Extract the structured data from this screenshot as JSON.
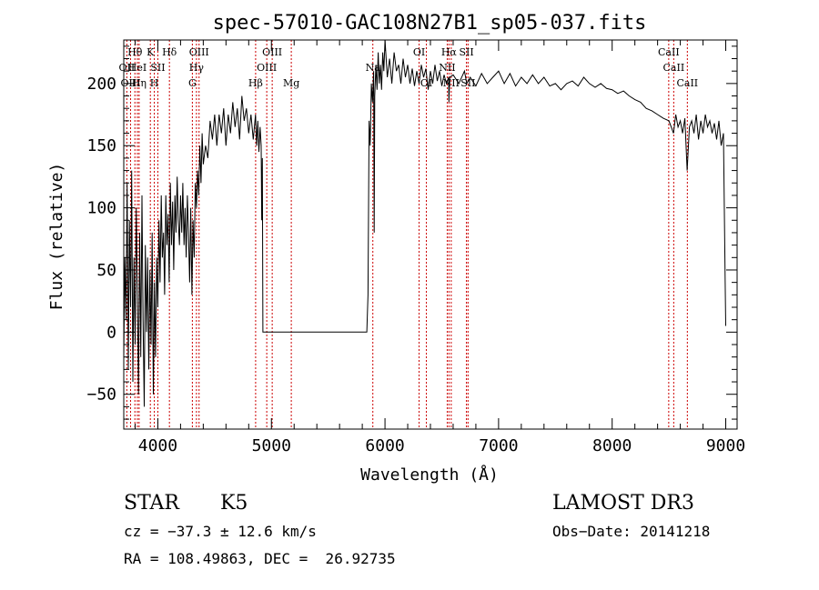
{
  "chart_data": {
    "type": "line",
    "title": "spec-57010-GAC108N27B1_sp05-037.fits",
    "xlabel": "Wavelength (Å)",
    "ylabel": "Flux (relative)",
    "xlim": [
      3700,
      9100
    ],
    "ylim": [
      -78,
      235
    ],
    "x_ticks": [
      4000,
      5000,
      6000,
      7000,
      8000,
      9000
    ],
    "x_tick_labels": [
      "4000",
      "5000",
      "6000",
      "7000",
      "8000",
      "9000"
    ],
    "y_ticks": [
      -50,
      0,
      50,
      100,
      150,
      200
    ],
    "y_tick_labels": [
      "−50",
      "0",
      "50",
      "100",
      "150",
      "200"
    ],
    "series": [
      {
        "name": "spectrum",
        "color": "#000000",
        "points": [
          [
            3700,
            -20
          ],
          [
            3710,
            60
          ],
          [
            3720,
            10
          ],
          [
            3730,
            120
          ],
          [
            3740,
            -30
          ],
          [
            3750,
            90
          ],
          [
            3760,
            20
          ],
          [
            3770,
            130
          ],
          [
            3780,
            -40
          ],
          [
            3790,
            60
          ],
          [
            3800,
            -10
          ],
          [
            3810,
            100
          ],
          [
            3820,
            30
          ],
          [
            3830,
            -50
          ],
          [
            3840,
            80
          ],
          [
            3850,
            -20
          ],
          [
            3860,
            110
          ],
          [
            3870,
            10
          ],
          [
            3880,
            -60
          ],
          [
            3890,
            70
          ],
          [
            3900,
            0
          ],
          [
            3910,
            60
          ],
          [
            3920,
            -30
          ],
          [
            3930,
            50
          ],
          [
            3940,
            -10
          ],
          [
            3950,
            80
          ],
          [
            3960,
            -50
          ],
          [
            3970,
            40
          ],
          [
            3980,
            -20
          ],
          [
            3990,
            60
          ],
          [
            4000,
            20
          ],
          [
            4010,
            90
          ],
          [
            4020,
            40
          ],
          [
            4030,
            110
          ],
          [
            4040,
            60
          ],
          [
            4050,
            80
          ],
          [
            4060,
            30
          ],
          [
            4070,
            110
          ],
          [
            4080,
            70
          ],
          [
            4090,
            95
          ],
          [
            4100,
            40
          ],
          [
            4110,
            120
          ],
          [
            4120,
            70
          ],
          [
            4130,
            105
          ],
          [
            4140,
            50
          ],
          [
            4150,
            110
          ],
          [
            4160,
            80
          ],
          [
            4170,
            125
          ],
          [
            4180,
            90
          ],
          [
            4190,
            70
          ],
          [
            4200,
            110
          ],
          [
            4210,
            80
          ],
          [
            4220,
            120
          ],
          [
            4230,
            70
          ],
          [
            4240,
            100
          ],
          [
            4250,
            60
          ],
          [
            4260,
            110
          ],
          [
            4270,
            80
          ],
          [
            4280,
            40
          ],
          [
            4290,
            100
          ],
          [
            4300,
            30
          ],
          [
            4310,
            90
          ],
          [
            4320,
            60
          ],
          [
            4330,
            120
          ],
          [
            4340,
            100
          ],
          [
            4350,
            130
          ],
          [
            4360,
            110
          ],
          [
            4370,
            150
          ],
          [
            4380,
            120
          ],
          [
            4390,
            160
          ],
          [
            4400,
            135
          ],
          [
            4420,
            150
          ],
          [
            4440,
            140
          ],
          [
            4460,
            170
          ],
          [
            4480,
            155
          ],
          [
            4500,
            175
          ],
          [
            4520,
            150
          ],
          [
            4540,
            175
          ],
          [
            4560,
            160
          ],
          [
            4580,
            180
          ],
          [
            4600,
            150
          ],
          [
            4620,
            175
          ],
          [
            4640,
            160
          ],
          [
            4660,
            185
          ],
          [
            4680,
            165
          ],
          [
            4700,
            180
          ],
          [
            4720,
            155
          ],
          [
            4740,
            190
          ],
          [
            4760,
            170
          ],
          [
            4780,
            180
          ],
          [
            4800,
            160
          ],
          [
            4820,
            175
          ],
          [
            4840,
            155
          ],
          [
            4860,
            175
          ],
          [
            4870,
            150
          ],
          [
            4880,
            170
          ],
          [
            4890,
            145
          ],
          [
            4900,
            165
          ],
          [
            4910,
            150
          ],
          [
            4915,
            90
          ],
          [
            4920,
            140
          ],
          [
            4925,
            0
          ],
          [
            4940,
            0
          ],
          [
            5000,
            0
          ],
          [
            5100,
            0
          ],
          [
            5200,
            0
          ],
          [
            5300,
            0
          ],
          [
            5400,
            0
          ],
          [
            5500,
            0
          ],
          [
            5600,
            0
          ],
          [
            5700,
            0
          ],
          [
            5800,
            0
          ],
          [
            5840,
            0
          ],
          [
            5850,
            30
          ],
          [
            5860,
            170
          ],
          [
            5870,
            150
          ],
          [
            5880,
            200
          ],
          [
            5890,
            185
          ],
          [
            5900,
            210
          ],
          [
            5905,
            80
          ],
          [
            5910,
            190
          ],
          [
            5920,
            215
          ],
          [
            5930,
            195
          ],
          [
            5940,
            225
          ],
          [
            5950,
            200
          ],
          [
            5960,
            215
          ],
          [
            5970,
            195
          ],
          [
            5980,
            225
          ],
          [
            5990,
            210
          ],
          [
            6000,
            235
          ],
          [
            6020,
            205
          ],
          [
            6040,
            220
          ],
          [
            6060,
            200
          ],
          [
            6080,
            225
          ],
          [
            6100,
            210
          ],
          [
            6120,
            215
          ],
          [
            6140,
            200
          ],
          [
            6160,
            220
          ],
          [
            6180,
            205
          ],
          [
            6200,
            215
          ],
          [
            6220,
            200
          ],
          [
            6240,
            212
          ],
          [
            6260,
            198
          ],
          [
            6280,
            210
          ],
          [
            6300,
            200
          ],
          [
            6320,
            215
          ],
          [
            6340,
            205
          ],
          [
            6360,
            212
          ],
          [
            6380,
            195
          ],
          [
            6400,
            210
          ],
          [
            6420,
            200
          ],
          [
            6440,
            215
          ],
          [
            6460,
            202
          ],
          [
            6480,
            210
          ],
          [
            6500,
            198
          ],
          [
            6520,
            207
          ],
          [
            6540,
            200
          ],
          [
            6560,
            205
          ],
          [
            6563,
            185
          ],
          [
            6570,
            205
          ],
          [
            6600,
            207
          ],
          [
            6650,
            200
          ],
          [
            6700,
            210
          ],
          [
            6720,
            200
          ],
          [
            6750,
            205
          ],
          [
            6800,
            198
          ],
          [
            6850,
            208
          ],
          [
            6900,
            200
          ],
          [
            6950,
            205
          ],
          [
            7000,
            210
          ],
          [
            7050,
            200
          ],
          [
            7100,
            208
          ],
          [
            7150,
            198
          ],
          [
            7200,
            205
          ],
          [
            7250,
            200
          ],
          [
            7300,
            207
          ],
          [
            7350,
            200
          ],
          [
            7400,
            205
          ],
          [
            7450,
            198
          ],
          [
            7500,
            200
          ],
          [
            7550,
            195
          ],
          [
            7600,
            200
          ],
          [
            7650,
            202
          ],
          [
            7700,
            198
          ],
          [
            7750,
            205
          ],
          [
            7800,
            200
          ],
          [
            7850,
            197
          ],
          [
            7900,
            200
          ],
          [
            7950,
            196
          ],
          [
            8000,
            195
          ],
          [
            8050,
            192
          ],
          [
            8100,
            194
          ],
          [
            8150,
            190
          ],
          [
            8200,
            187
          ],
          [
            8250,
            185
          ],
          [
            8300,
            180
          ],
          [
            8350,
            178
          ],
          [
            8400,
            175
          ],
          [
            8450,
            172
          ],
          [
            8500,
            170
          ],
          [
            8520,
            165
          ],
          [
            8540,
            160
          ],
          [
            8560,
            175
          ],
          [
            8580,
            165
          ],
          [
            8600,
            170
          ],
          [
            8620,
            160
          ],
          [
            8640,
            172
          ],
          [
            8660,
            130
          ],
          [
            8680,
            165
          ],
          [
            8700,
            170
          ],
          [
            8720,
            160
          ],
          [
            8740,
            175
          ],
          [
            8760,
            155
          ],
          [
            8780,
            170
          ],
          [
            8800,
            160
          ],
          [
            8820,
            175
          ],
          [
            8840,
            165
          ],
          [
            8860,
            170
          ],
          [
            8880,
            160
          ],
          [
            8900,
            168
          ],
          [
            8920,
            155
          ],
          [
            8940,
            170
          ],
          [
            8960,
            150
          ],
          [
            8980,
            160
          ],
          [
            8995,
            40
          ],
          [
            9000,
            5
          ]
        ]
      }
    ],
    "lines": [
      {
        "label": "Hθ",
        "x": 3798,
        "row": 1
      },
      {
        "label": "OII",
        "x": 3727,
        "row": 2
      },
      {
        "label": "OIII",
        "x": 3760,
        "row": 3
      },
      {
        "label": "HeI",
        "x": 3820,
        "row": 2
      },
      {
        "label": "Hη",
        "x": 3835,
        "row": 3
      },
      {
        "label": "K",
        "x": 3934,
        "row": 1
      },
      {
        "label": "SII",
        "x": 4000,
        "row": 2
      },
      {
        "label": "H",
        "x": 3969,
        "row": 3
      },
      {
        "label": "Hδ",
        "x": 4102,
        "row": 1
      },
      {
        "label": "OIII",
        "x": 4363,
        "row": 1
      },
      {
        "label": "Hγ",
        "x": 4340,
        "row": 2
      },
      {
        "label": "G",
        "x": 4304,
        "row": 3
      },
      {
        "label": "Hβ",
        "x": 4861,
        "row": 3
      },
      {
        "label": "OIII",
        "x": 5007,
        "row": 1
      },
      {
        "label": "OIII",
        "x": 4959,
        "row": 2
      },
      {
        "label": "Mg",
        "x": 5175,
        "row": 3
      },
      {
        "label": "Na",
        "x": 5893,
        "row": 2
      },
      {
        "label": "OI",
        "x": 6300,
        "row": 1
      },
      {
        "label": "OI",
        "x": 6364,
        "row": 3
      },
      {
        "label": "Hα",
        "x": 6563,
        "row": 1
      },
      {
        "label": "NII",
        "x": 6548,
        "row": 2
      },
      {
        "label": "SII",
        "x": 6717,
        "row": 1
      },
      {
        "label": "NII",
        "x": 6583,
        "row": 3
      },
      {
        "label": "SII",
        "x": 6731,
        "row": 3
      },
      {
        "label": "CaII",
        "x": 8498,
        "row": 1
      },
      {
        "label": "CaII",
        "x": 8542,
        "row": 2
      },
      {
        "label": "CaII",
        "x": 8662,
        "row": 3
      }
    ]
  },
  "footer": {
    "class_label": "STAR",
    "subclass_label": "K5",
    "survey": "LAMOST DR3",
    "cz": "cz = −37.3 ± 12.6 km/s",
    "obs_date": "Obs−Date: 20141218",
    "coords": "RA = 108.49863, DEC =  26.92735"
  },
  "colors": {
    "line_marker": "#cc0000",
    "spectrum": "#000000"
  }
}
